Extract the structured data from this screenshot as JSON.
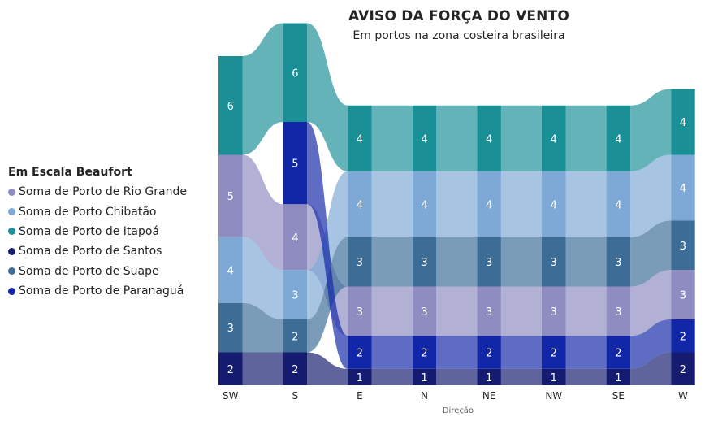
{
  "chart_data": {
    "type": "ribbon",
    "title": "AVISO DA FORÇA DO VENTO",
    "subtitle": "Em portos na zona costeira brasileira",
    "xlabel": "Direção",
    "legend_title": "Em Escala Beaufort",
    "legend_position": "left",
    "categories": [
      "SW",
      "S",
      "E",
      "N",
      "NE",
      "NW",
      "SE",
      "W"
    ],
    "series": [
      {
        "name": "Soma de Porto de Rio Grande",
        "color": "#8e8cc1",
        "values": [
          5,
          4,
          3,
          3,
          3,
          3,
          3,
          3
        ]
      },
      {
        "name": "Soma de Porto Chibatão",
        "color": "#7ea9d6",
        "values": [
          4,
          3,
          4,
          4,
          4,
          4,
          4,
          4
        ]
      },
      {
        "name": "Soma de Porto de Itapoá",
        "color": "#1a8f96",
        "values": [
          6,
          6,
          4,
          4,
          4,
          4,
          4,
          4
        ]
      },
      {
        "name": "Soma de Porto de Santos",
        "color": "#151b6e",
        "values": [
          2,
          2,
          1,
          1,
          1,
          1,
          1,
          2
        ]
      },
      {
        "name": "Soma de Porto de Suape",
        "color": "#3d6d96",
        "values": [
          3,
          2,
          3,
          3,
          3,
          3,
          3,
          3
        ]
      },
      {
        "name": "Soma de Porto de Paranaguá",
        "color": "#1226a8",
        "values": [
          0,
          5,
          2,
          2,
          2,
          2,
          2,
          2
        ]
      }
    ]
  }
}
